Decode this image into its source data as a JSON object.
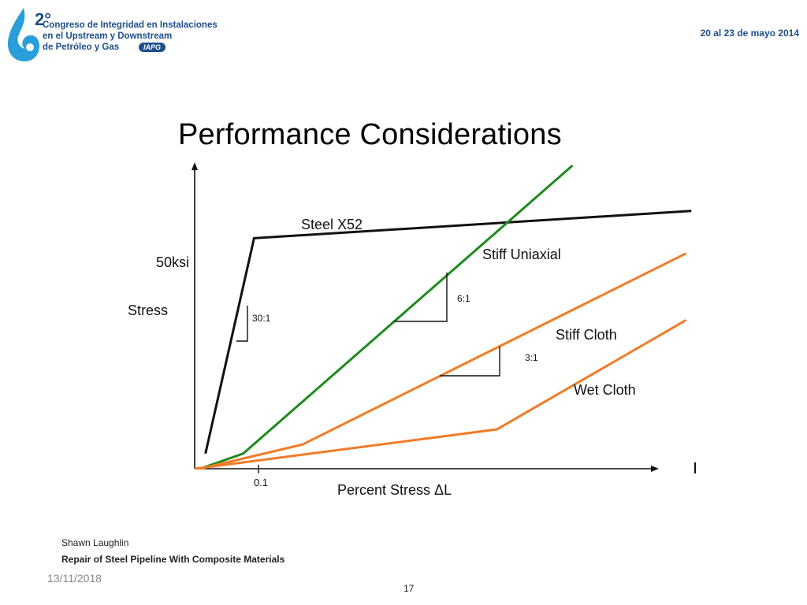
{
  "header": {
    "logo_number": "2°",
    "logo_lines": [
      "Congreso de Integridad en Instalaciones",
      "en el Upstream y Downstream",
      "de Petróleo y Gas"
    ],
    "logo_badge": "IAPG",
    "event_date": "20 al 23 de mayo 2014"
  },
  "colors": {
    "brand": "#1d4f8c",
    "logo_drop": "#2a9ed8",
    "steel": "#111111",
    "uniaxial": "#1e8a1e",
    "cloth": "#f07b28"
  },
  "chart_data": {
    "type": "line",
    "title": "Performance Considerations",
    "xlabel": "Percent Stress ΔL",
    "ylabel": "Stress",
    "x_ticks": [
      "0.1"
    ],
    "y_ticks": [
      "50ksi"
    ],
    "series": [
      {
        "name": "Steel X52",
        "color": "#111111",
        "x": [
          0.02,
          0.11,
          0.92
        ],
        "y": [
          0.05,
          0.76,
          0.85
        ]
      },
      {
        "name": "Stiff Uniaxial",
        "color": "#1e8a1e",
        "x": [
          0.01,
          0.09,
          0.7
        ],
        "y": [
          0.0,
          0.05,
          1.0
        ]
      },
      {
        "name": "Stiff Cloth",
        "color": "#f07b28",
        "x": [
          0.01,
          0.2,
          0.91
        ],
        "y": [
          0.0,
          0.08,
          0.71
        ]
      },
      {
        "name": "Wet Cloth",
        "color": "#f07b28",
        "x": [
          0.0,
          0.56,
          0.91
        ],
        "y": [
          0.0,
          0.13,
          0.49
        ]
      }
    ],
    "slope_markers": [
      {
        "label": "30:1",
        "series": "Steel X52"
      },
      {
        "label": "6:1",
        "series": "Stiff Uniaxial"
      },
      {
        "label": "3:1",
        "series": "Stiff Cloth"
      }
    ]
  },
  "footer": {
    "author": "Shawn Laughlin",
    "subtitle": "Repair of Steel Pipeline With Composite Materials",
    "date": "13/11/2018",
    "page": "17"
  }
}
